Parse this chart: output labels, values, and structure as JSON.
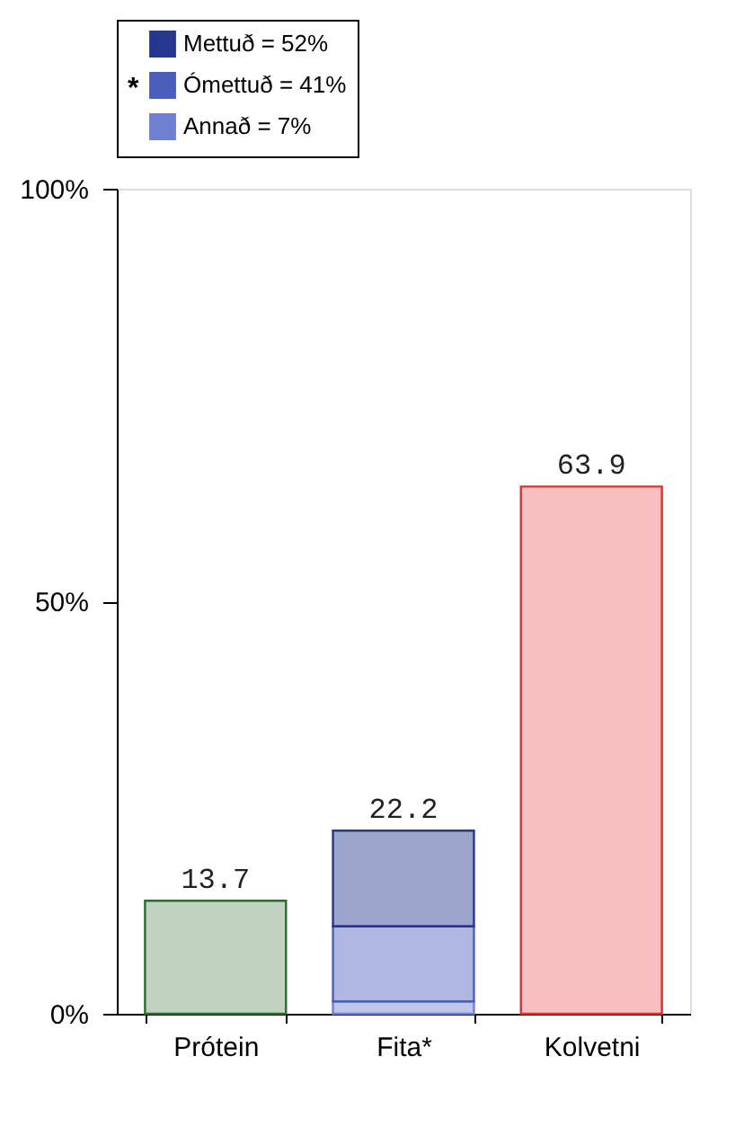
{
  "chart_data": {
    "type": "bar",
    "stacked": true,
    "categories": [
      "Prótein",
      "Fita*",
      "Kolvetni"
    ],
    "series": [
      {
        "colors": [
          "#2e6b2e",
          null,
          "#e03030"
        ],
        "values": [
          13.7,
          null,
          63.9
        ]
      },
      {
        "name": "Annað = 7%",
        "color": "#7080d0",
        "values": [
          null,
          1.5,
          null
        ]
      },
      {
        "name": "Ómettuð = 41%",
        "color": "#4a5fba",
        "values": [
          null,
          9.1,
          null
        ]
      },
      {
        "name": "Mettuð = 52%",
        "color": "#26378f",
        "values": [
          null,
          11.6,
          null
        ]
      }
    ],
    "legend_title": "*",
    "totals": [
      "13.7",
      "22.2",
      "63.9"
    ],
    "ylim": [
      0,
      100
    ],
    "yticks": [
      {
        "value": 0,
        "label": "0%"
      },
      {
        "value": 50,
        "label": "50%"
      },
      {
        "value": 100,
        "label": "100%"
      }
    ],
    "grid": false,
    "legend": "top"
  }
}
